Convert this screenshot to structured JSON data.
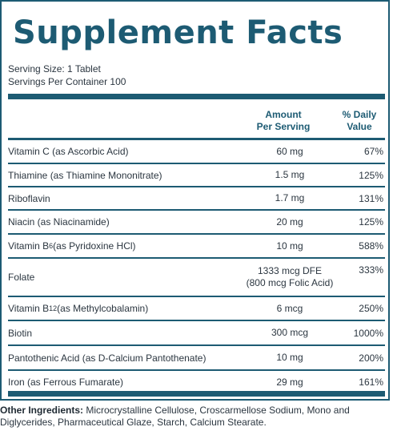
{
  "title": "Supplement Facts",
  "serving_size": "Serving Size: 1 Tablet",
  "servings_per_container": "Servings Per Container 100",
  "headers": {
    "amount_line1": "Amount",
    "amount_line2": "Per Serving",
    "daily_line1": "% Daily",
    "daily_line2": "Value"
  },
  "rows": [
    {
      "name": "Vitamin C (as Ascorbic Acid)",
      "amount": "60 mg",
      "daily": "67%"
    },
    {
      "name": "Thiamine (as Thiamine Mononitrate)",
      "amount": "1.5 mg",
      "daily": "125%"
    },
    {
      "name": "Riboflavin",
      "amount": "1.7 mg",
      "daily": "131%"
    },
    {
      "name": "Niacin (as Niacinamide)",
      "amount": "20 mg",
      "daily": "125%"
    },
    {
      "name_pre": "Vitamin B",
      "name_sub": "6",
      "name_post": " (as Pyridoxine HCl)",
      "amount": "10 mg",
      "daily": "588%"
    },
    {
      "name": "Folate",
      "amount_line1": "1333 mcg DFE",
      "amount_line2": "(800 mcg Folic Acid)",
      "daily": "333%"
    },
    {
      "name_pre": "Vitamin B",
      "name_sub": "12",
      "name_post": " (as Methylcobalamin)",
      "amount": "6 mcg",
      "daily": "250%"
    },
    {
      "name": "Biotin",
      "amount": "300 mcg",
      "daily": "1000%"
    },
    {
      "name": "Pantothenic Acid (as D-Calcium Pantothenate)",
      "amount": "10 mg",
      "daily": "200%"
    },
    {
      "name": "Iron (as Ferrous Fumarate)",
      "amount": "29 mg",
      "daily": "161%"
    }
  ],
  "other_ingredients": {
    "label": "Other Ingredients:",
    "text": " Microcrystalline Cellulose, Croscarmellose Sodium, Mono and Diglycerides, Pharmaceutical Glaze, Starch, Calcium Stearate."
  },
  "colors": {
    "accent": "#1d5b73",
    "text": "#2b3640"
  }
}
